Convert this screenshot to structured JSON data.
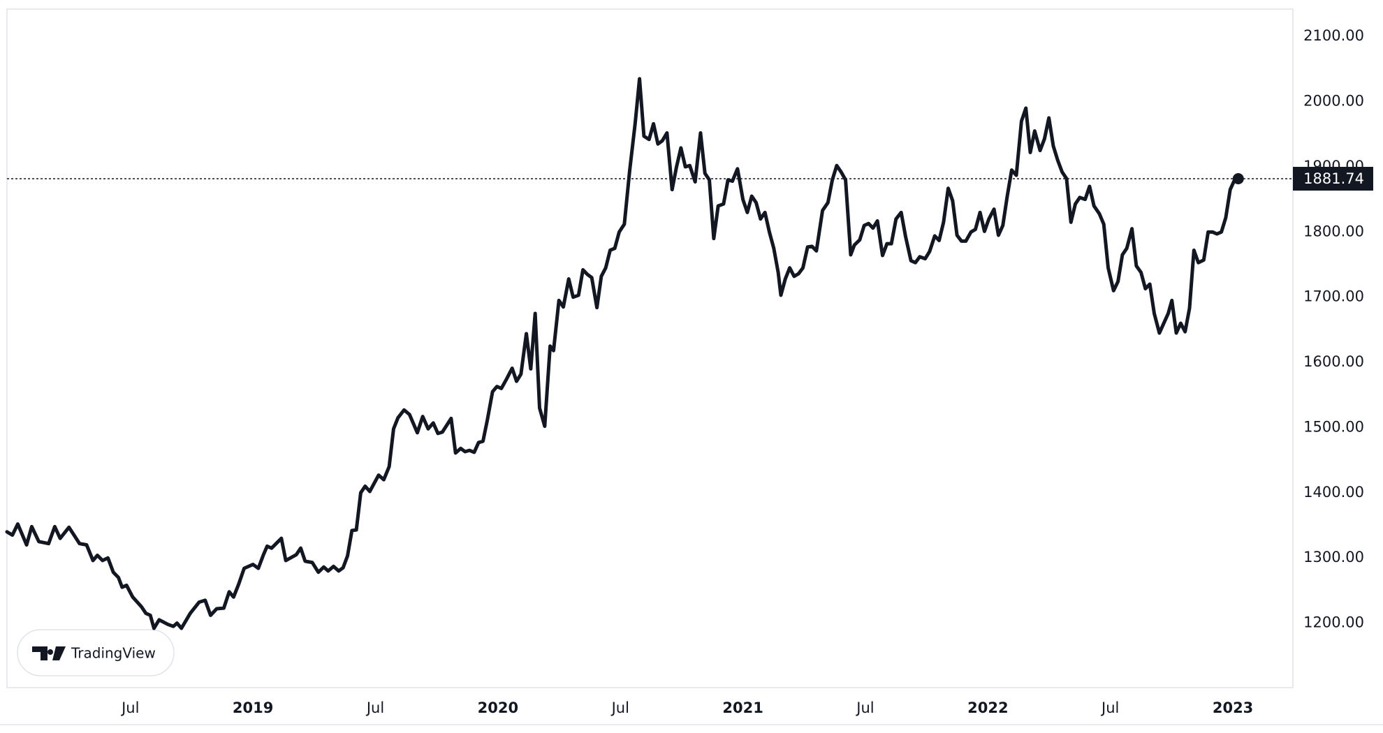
{
  "chart_data": {
    "type": "line",
    "color": "#131722",
    "watermark": "TradingView",
    "x": [
      2017.996,
      2018.018,
      2018.04,
      2018.076,
      2018.097,
      2018.126,
      2018.166,
      2018.191,
      2018.213,
      2018.249,
      2018.292,
      2018.321,
      2018.347,
      2018.365,
      2018.386,
      2018.408,
      2018.43,
      2018.451,
      2018.466,
      2018.484,
      2018.509,
      2018.545,
      2018.563,
      2018.581,
      2018.596,
      2018.617,
      2018.653,
      2018.675,
      2018.69,
      2018.708,
      2018.744,
      2018.78,
      2018.805,
      2018.827,
      2018.852,
      2018.881,
      2018.903,
      2018.921,
      2018.942,
      2018.964,
      2019.0,
      2019.022,
      2019.043,
      2019.058,
      2019.076,
      2019.116,
      2019.134,
      2019.177,
      2019.195,
      2019.213,
      2019.242,
      2019.267,
      2019.289,
      2019.307,
      2019.329,
      2019.35,
      2019.368,
      2019.386,
      2019.404,
      2019.422,
      2019.44,
      2019.458,
      2019.477,
      2019.513,
      2019.534,
      2019.556,
      2019.574,
      2019.592,
      2019.617,
      2019.639,
      2019.671,
      2019.693,
      2019.715,
      2019.736,
      2019.755,
      2019.773,
      2019.809,
      2019.827,
      2019.848,
      2019.866,
      2019.884,
      2019.903,
      2019.921,
      2019.939,
      2019.957,
      2019.978,
      2019.996,
      2020.014,
      2020.036,
      2020.058,
      2020.076,
      2020.094,
      2020.116,
      2020.134,
      2020.152,
      2020.17,
      2020.191,
      2020.213,
      2020.227,
      2020.249,
      2020.267,
      2020.289,
      2020.307,
      2020.329,
      2020.347,
      2020.365,
      2020.383,
      2020.404,
      2020.422,
      2020.44,
      2020.458,
      2020.477,
      2020.495,
      2020.516,
      2020.538,
      2020.56,
      2020.578,
      2020.596,
      2020.617,
      2020.635,
      2020.653,
      2020.671,
      2020.69,
      2020.711,
      2020.729,
      2020.747,
      2020.765,
      2020.783,
      2020.805,
      2020.827,
      2020.845,
      2020.863,
      2020.881,
      2020.899,
      2020.921,
      2020.939,
      2020.957,
      2020.978,
      2021.0,
      2021.018,
      2021.036,
      2021.054,
      2021.072,
      2021.09,
      2021.108,
      2021.126,
      2021.144,
      2021.155,
      2021.173,
      2021.191,
      2021.209,
      2021.227,
      2021.245,
      2021.264,
      2021.282,
      2021.3,
      2021.325,
      2021.347,
      2021.365,
      2021.383,
      2021.401,
      2021.419,
      2021.44,
      2021.455,
      2021.477,
      2021.495,
      2021.513,
      2021.531,
      2021.549,
      2021.57,
      2021.588,
      2021.606,
      2021.625,
      2021.646,
      2021.664,
      2021.686,
      2021.704,
      2021.722,
      2021.744,
      2021.762,
      2021.783,
      2021.801,
      2021.819,
      2021.838,
      2021.856,
      2021.874,
      2021.892,
      2021.91,
      2021.931,
      2021.949,
      2021.968,
      2021.986,
      2022.004,
      2022.025,
      2022.043,
      2022.061,
      2022.079,
      2022.097,
      2022.116,
      2022.137,
      2022.155,
      2022.173,
      2022.191,
      2022.213,
      2022.231,
      2022.249,
      2022.267,
      2022.285,
      2022.303,
      2022.321,
      2022.339,
      2022.357,
      2022.375,
      2022.397,
      2022.415,
      2022.433,
      2022.455,
      2022.473,
      2022.491,
      2022.513,
      2022.531,
      2022.549,
      2022.567,
      2022.588,
      2022.606,
      2022.625,
      2022.643,
      2022.661,
      2022.679,
      2022.7,
      2022.718,
      2022.736,
      2022.751,
      2022.769,
      2022.787,
      2022.805,
      2022.823,
      2022.841,
      2022.859,
      2022.881,
      2022.899,
      2022.917,
      2022.935,
      2022.953,
      2022.971,
      2022.989,
      2023.007,
      2023.022
    ],
    "values": [
      1340,
      1335,
      1352,
      1320,
      1348,
      1325,
      1322,
      1348,
      1330,
      1347,
      1322,
      1320,
      1296,
      1304,
      1296,
      1300,
      1278,
      1270,
      1255,
      1258,
      1240,
      1225,
      1215,
      1212,
      1192,
      1205,
      1198,
      1195,
      1200,
      1192,
      1215,
      1232,
      1235,
      1212,
      1222,
      1223,
      1248,
      1240,
      1260,
      1284,
      1290,
      1284,
      1305,
      1318,
      1315,
      1330,
      1296,
      1305,
      1315,
      1295,
      1293,
      1278,
      1286,
      1280,
      1287,
      1280,
      1285,
      1303,
      1342,
      1343,
      1400,
      1410,
      1402,
      1427,
      1420,
      1440,
      1498,
      1515,
      1527,
      1520,
      1492,
      1517,
      1498,
      1507,
      1491,
      1493,
      1514,
      1461,
      1468,
      1463,
      1465,
      1462,
      1477,
      1479,
      1512,
      1555,
      1563,
      1560,
      1575,
      1591,
      1571,
      1582,
      1644,
      1590,
      1675,
      1530,
      1502,
      1625,
      1618,
      1695,
      1685,
      1728,
      1700,
      1703,
      1742,
      1735,
      1730,
      1684,
      1732,
      1745,
      1772,
      1775,
      1800,
      1812,
      1895,
      1966,
      2035,
      1947,
      1942,
      1966,
      1935,
      1940,
      1952,
      1865,
      1900,
      1929,
      1900,
      1902,
      1877,
      1952,
      1890,
      1880,
      1790,
      1840,
      1843,
      1880,
      1878,
      1897,
      1850,
      1830,
      1855,
      1845,
      1820,
      1830,
      1800,
      1775,
      1738,
      1703,
      1728,
      1745,
      1732,
      1736,
      1745,
      1777,
      1778,
      1771,
      1833,
      1845,
      1880,
      1902,
      1892,
      1880,
      1765,
      1780,
      1788,
      1810,
      1813,
      1806,
      1817,
      1764,
      1782,
      1782,
      1820,
      1830,
      1793,
      1756,
      1753,
      1762,
      1759,
      1770,
      1794,
      1787,
      1815,
      1867,
      1848,
      1795,
      1786,
      1786,
      1800,
      1804,
      1830,
      1801,
      1820,
      1835,
      1795,
      1810,
      1855,
      1895,
      1887,
      1970,
      1990,
      1922,
      1955,
      1925,
      1943,
      1975,
      1932,
      1910,
      1892,
      1882,
      1815,
      1843,
      1853,
      1850,
      1870,
      1840,
      1828,
      1812,
      1745,
      1710,
      1724,
      1765,
      1775,
      1805,
      1748,
      1738,
      1713,
      1720,
      1675,
      1645,
      1660,
      1675,
      1695,
      1645,
      1660,
      1647,
      1683,
      1772,
      1753,
      1757,
      1800,
      1800,
      1797,
      1800,
      1822,
      1865,
      1880,
      1881.74
    ],
    "xlim": [
      2017.996,
      2023.245
    ],
    "xticks": [
      {
        "value": 2018.5,
        "label": "Jul"
      },
      {
        "value": 2019,
        "label": "2019"
      },
      {
        "value": 2019.5,
        "label": "Jul"
      },
      {
        "value": 2020,
        "label": "2020"
      },
      {
        "value": 2020.5,
        "label": "Jul"
      },
      {
        "value": 2021,
        "label": "2021"
      },
      {
        "value": 2021.5,
        "label": "Jul"
      },
      {
        "value": 2022,
        "label": "2022"
      },
      {
        "value": 2022.5,
        "label": "Jul"
      },
      {
        "value": 2023,
        "label": "2023"
      }
    ],
    "ylim": [
      1101,
      2142
    ],
    "yticks": [
      {
        "value": 1200,
        "label": "1200.00"
      },
      {
        "value": 1300,
        "label": "1300.00"
      },
      {
        "value": 1400,
        "label": "1400.00"
      },
      {
        "value": 1500,
        "label": "1500.00"
      },
      {
        "value": 1600,
        "label": "1600.00"
      },
      {
        "value": 1700,
        "label": "1700.00"
      },
      {
        "value": 1800,
        "label": "1800.00"
      },
      {
        "value": 1900,
        "label": "1900.00"
      },
      {
        "value": 2000,
        "label": "2000.00"
      },
      {
        "value": 2100,
        "label": "2100.00"
      }
    ],
    "grid": false
  }
}
